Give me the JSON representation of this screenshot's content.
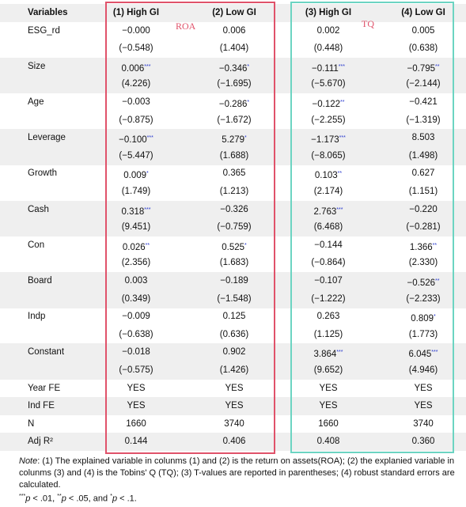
{
  "table": {
    "header": [
      "Variables",
      "(1) High GI",
      "(2) Low GI",
      "(3) High GI",
      "(4) Low GI"
    ],
    "rows": [
      {
        "label": "ESG_rd",
        "cells": [
          {
            "text": "−0.000"
          },
          {
            "text": "0.006"
          },
          {
            "text": "0.002"
          },
          {
            "text": "0.005"
          }
        ]
      },
      {
        "cells": [
          {
            "text": "(−0.548)"
          },
          {
            "text": "(1.404)"
          },
          {
            "text": "(0.448)"
          },
          {
            "text": "(0.638)"
          }
        ]
      },
      {
        "label": "Size",
        "cells": [
          {
            "text": "0.006",
            "stars": "***"
          },
          {
            "text": "−0.346",
            "stars": "*"
          },
          {
            "text": "−0.111",
            "stars": "***"
          },
          {
            "text": "−0.795",
            "stars": "**"
          }
        ]
      },
      {
        "cells": [
          {
            "text": "(4.226)"
          },
          {
            "text": "(−1.695)"
          },
          {
            "text": "(−5.670)"
          },
          {
            "text": "(−2.144)"
          }
        ]
      },
      {
        "label": "Age",
        "cells": [
          {
            "text": "−0.003"
          },
          {
            "text": "−0.286",
            "stars": "*"
          },
          {
            "text": "−0.122",
            "stars": "**"
          },
          {
            "text": "−0.421"
          }
        ]
      },
      {
        "cells": [
          {
            "text": "(−0.875)"
          },
          {
            "text": "(−1.672)"
          },
          {
            "text": "(−2.255)"
          },
          {
            "text": "(−1.319)"
          }
        ]
      },
      {
        "label": "Leverage",
        "cells": [
          {
            "text": "−0.100",
            "stars": "***"
          },
          {
            "text": "5.279",
            "stars": "*"
          },
          {
            "text": "−1.173",
            "stars": "***"
          },
          {
            "text": "8.503"
          }
        ]
      },
      {
        "cells": [
          {
            "text": "(−5.447)"
          },
          {
            "text": "(1.688)"
          },
          {
            "text": "(−8.065)"
          },
          {
            "text": "(1.498)"
          }
        ]
      },
      {
        "label": "Growth",
        "cells": [
          {
            "text": "0.009",
            "stars": "*"
          },
          {
            "text": "0.365"
          },
          {
            "text": "0.103",
            "stars": "**"
          },
          {
            "text": "0.627"
          }
        ]
      },
      {
        "cells": [
          {
            "text": "(1.749)"
          },
          {
            "text": "(1.213)"
          },
          {
            "text": "(2.174)"
          },
          {
            "text": "(1.151)"
          }
        ]
      },
      {
        "label": "Cash",
        "cells": [
          {
            "text": "0.318",
            "stars": "***"
          },
          {
            "text": "−0.326"
          },
          {
            "text": "2.763",
            "stars": "***"
          },
          {
            "text": "−0.220"
          }
        ]
      },
      {
        "cells": [
          {
            "text": "(9.451)"
          },
          {
            "text": "(−0.759)"
          },
          {
            "text": "(6.468)"
          },
          {
            "text": "(−0.281)"
          }
        ]
      },
      {
        "label": "Con",
        "cells": [
          {
            "text": "0.026",
            "stars": "**"
          },
          {
            "text": "0.525",
            "stars": "*"
          },
          {
            "text": "−0.144"
          },
          {
            "text": "1.366",
            "stars": "**"
          }
        ]
      },
      {
        "cells": [
          {
            "text": "(2.356)"
          },
          {
            "text": "(1.683)"
          },
          {
            "text": "(−0.864)"
          },
          {
            "text": "(2.330)"
          }
        ]
      },
      {
        "label": "Board",
        "cells": [
          {
            "text": "0.003"
          },
          {
            "text": "−0.189"
          },
          {
            "text": "−0.107"
          },
          {
            "text": "−0.526",
            "stars": "**"
          }
        ]
      },
      {
        "cells": [
          {
            "text": "(0.349)"
          },
          {
            "text": "(−1.548)"
          },
          {
            "text": "(−1.222)"
          },
          {
            "text": "(−2.233)"
          }
        ]
      },
      {
        "label": "Indp",
        "cells": [
          {
            "text": "−0.009"
          },
          {
            "text": "0.125"
          },
          {
            "text": "0.263"
          },
          {
            "text": "0.809",
            "stars": "*"
          }
        ]
      },
      {
        "cells": [
          {
            "text": "(−0.638)"
          },
          {
            "text": "(0.636)"
          },
          {
            "text": "(1.125)"
          },
          {
            "text": "(1.773)"
          }
        ]
      },
      {
        "label": "Constant",
        "cells": [
          {
            "text": "−0.018"
          },
          {
            "text": "0.902"
          },
          {
            "text": "3.864",
            "stars": "***"
          },
          {
            "text": "6.045",
            "stars": "***"
          }
        ]
      },
      {
        "cells": [
          {
            "text": "(−0.575)"
          },
          {
            "text": "(1.426)"
          },
          {
            "text": "(9.652)"
          },
          {
            "text": "(4.946)"
          }
        ]
      },
      {
        "label": "Year FE",
        "cells": [
          {
            "text": "YES"
          },
          {
            "text": "YES"
          },
          {
            "text": "YES"
          },
          {
            "text": "YES"
          }
        ]
      },
      {
        "label": "Ind FE",
        "cells": [
          {
            "text": "YES"
          },
          {
            "text": "YES"
          },
          {
            "text": "YES"
          },
          {
            "text": "YES"
          }
        ]
      },
      {
        "label": "N",
        "cells": [
          {
            "text": "1660"
          },
          {
            "text": "3740"
          },
          {
            "text": "1660"
          },
          {
            "text": "3740"
          }
        ]
      },
      {
        "label": "Adj R²",
        "cells": [
          {
            "text": "0.144"
          },
          {
            "text": "0.406"
          },
          {
            "text": "0.408"
          },
          {
            "text": "0.360"
          }
        ]
      }
    ]
  },
  "annotations": [
    "ROA",
    "TQ"
  ],
  "note": {
    "label": "Note",
    "text": ": (1) The explained variable in colunms (1) and (2) is the return on assets(ROA); (2) the explanied variable in colunms (3) and (4) is the Tobins' Q (TQ); (3) T-values are reported in parentheses; (4) robust standard errors are calculated."
  },
  "significance": [
    {
      "stars": "***",
      "p": "p",
      "text": " < .01, "
    },
    {
      "stars": "**",
      "p": "p",
      "text": " < .05, and "
    },
    {
      "stars": "*",
      "p": "p",
      "text": " < .1."
    }
  ]
}
